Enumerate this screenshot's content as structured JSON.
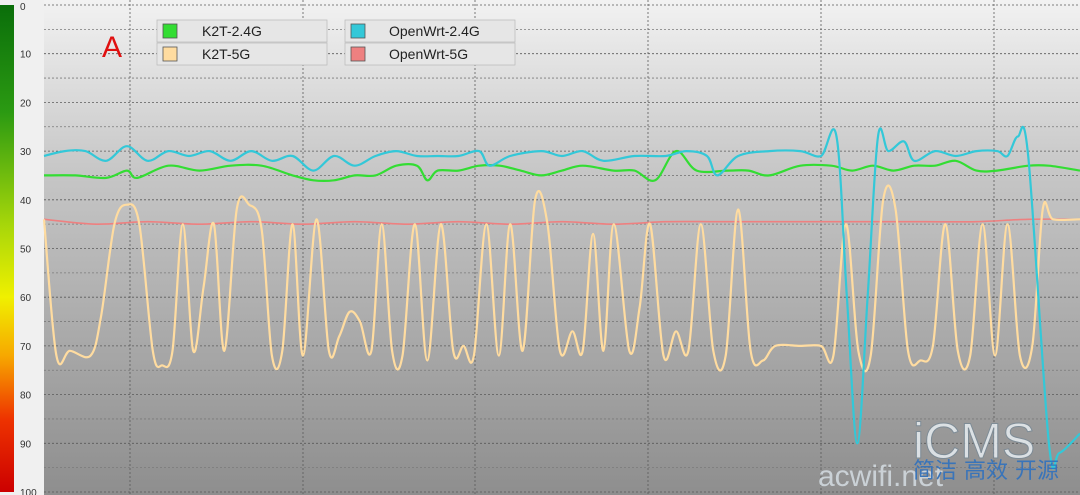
{
  "chart_data": {
    "type": "line",
    "panel_label": "A",
    "y_reversed": true,
    "ylim": [
      0,
      100
    ],
    "yticks": [
      0,
      10,
      20,
      30,
      40,
      50,
      60,
      70,
      80,
      90,
      100
    ],
    "grid": true,
    "legend_position": "top-left",
    "series": [
      {
        "name": "K2T-2.4G",
        "color": "#33dd33",
        "points": [
          [
            0,
            35
          ],
          [
            3,
            35
          ],
          [
            6,
            35.5
          ],
          [
            8,
            34
          ],
          [
            9,
            35.5
          ],
          [
            12,
            33
          ],
          [
            15,
            34
          ],
          [
            18,
            33
          ],
          [
            21,
            33
          ],
          [
            24,
            35
          ],
          [
            26,
            36
          ],
          [
            28,
            36
          ],
          [
            30,
            35
          ],
          [
            32,
            35
          ],
          [
            34,
            33
          ],
          [
            36,
            33
          ],
          [
            37,
            36
          ],
          [
            38,
            34
          ],
          [
            40,
            34
          ],
          [
            42,
            33
          ],
          [
            44,
            33
          ],
          [
            46,
            34
          ],
          [
            48,
            35
          ],
          [
            50,
            34
          ],
          [
            52,
            33
          ],
          [
            55,
            34
          ],
          [
            57,
            34
          ],
          [
            59,
            36
          ],
          [
            61,
            30
          ],
          [
            63,
            34
          ],
          [
            66,
            34
          ],
          [
            68,
            34
          ],
          [
            70,
            35
          ],
          [
            73,
            33
          ],
          [
            76,
            33
          ],
          [
            78,
            34
          ],
          [
            80,
            33
          ],
          [
            82,
            34
          ],
          [
            84,
            33
          ],
          [
            86,
            33
          ],
          [
            88,
            32
          ],
          [
            90,
            34
          ],
          [
            92,
            34
          ],
          [
            95,
            33
          ],
          [
            97,
            33
          ],
          [
            100,
            34
          ]
        ]
      },
      {
        "name": "OpenWrt-2.4G",
        "color": "#33c8d8",
        "points": [
          [
            0,
            31
          ],
          [
            2,
            30
          ],
          [
            4,
            30
          ],
          [
            6,
            32
          ],
          [
            8,
            29
          ],
          [
            10,
            32
          ],
          [
            12,
            30
          ],
          [
            14,
            31
          ],
          [
            16,
            30
          ],
          [
            18,
            32
          ],
          [
            20,
            30
          ],
          [
            22,
            32
          ],
          [
            24,
            31
          ],
          [
            26,
            34
          ],
          [
            28,
            31
          ],
          [
            30,
            33
          ],
          [
            32,
            31
          ],
          [
            34,
            30
          ],
          [
            36,
            31
          ],
          [
            38,
            31
          ],
          [
            40,
            31
          ],
          [
            42,
            30
          ],
          [
            43,
            33
          ],
          [
            45,
            31
          ],
          [
            48,
            30
          ],
          [
            50,
            31
          ],
          [
            52,
            30
          ],
          [
            54,
            32
          ],
          [
            57,
            31
          ],
          [
            60,
            31
          ],
          [
            62,
            30
          ],
          [
            64,
            31
          ],
          [
            65,
            35
          ],
          [
            67,
            31
          ],
          [
            70,
            30
          ],
          [
            73,
            30
          ],
          [
            75,
            31
          ],
          [
            76.5,
            27
          ],
          [
            77.5,
            60
          ],
          [
            78.5,
            90
          ],
          [
            79.5,
            60
          ],
          [
            80.5,
            27
          ],
          [
            81.5,
            30
          ],
          [
            83,
            28
          ],
          [
            84,
            32
          ],
          [
            86,
            30
          ],
          [
            88,
            31
          ],
          [
            90,
            30
          ],
          [
            92,
            30
          ],
          [
            93,
            31
          ],
          [
            94,
            27
          ],
          [
            95,
            31
          ],
          [
            97,
            90
          ],
          [
            98,
            92
          ],
          [
            100,
            88
          ]
        ]
      },
      {
        "name": "K2T-5G",
        "color": "#ffdca0",
        "points": [
          [
            0,
            44
          ],
          [
            1.2,
            72
          ],
          [
            2.5,
            71
          ],
          [
            4.5,
            72
          ],
          [
            5.5,
            64
          ],
          [
            6.8,
            45
          ],
          [
            8,
            41
          ],
          [
            9.2,
            45
          ],
          [
            10.5,
            71
          ],
          [
            11.4,
            74
          ],
          [
            12.4,
            71
          ],
          [
            13.4,
            45
          ],
          [
            14.4,
            71
          ],
          [
            15.4,
            58
          ],
          [
            16.4,
            45
          ],
          [
            17.4,
            71
          ],
          [
            18.6,
            42
          ],
          [
            19.8,
            41
          ],
          [
            21,
            46
          ],
          [
            22,
            72
          ],
          [
            23,
            71
          ],
          [
            24,
            45
          ],
          [
            25,
            72
          ],
          [
            26.3,
            44
          ],
          [
            27.5,
            71
          ],
          [
            28.5,
            68
          ],
          [
            29.5,
            63
          ],
          [
            30.5,
            65
          ],
          [
            31.6,
            71
          ],
          [
            32.6,
            45
          ],
          [
            33.6,
            71
          ],
          [
            34.6,
            72
          ],
          [
            35.8,
            45
          ],
          [
            37,
            73
          ],
          [
            38.3,
            45
          ],
          [
            39.5,
            71
          ],
          [
            40.5,
            70
          ],
          [
            41.5,
            72
          ],
          [
            42.7,
            45
          ],
          [
            43.9,
            72
          ],
          [
            45,
            45
          ],
          [
            46.2,
            71
          ],
          [
            47.4,
            40
          ],
          [
            48.6,
            45
          ],
          [
            49.8,
            71
          ],
          [
            51,
            67
          ],
          [
            52,
            71
          ],
          [
            53,
            47
          ],
          [
            54,
            71
          ],
          [
            55,
            45
          ],
          [
            56.5,
            71
          ],
          [
            57.5,
            62
          ],
          [
            58.5,
            45
          ],
          [
            59.8,
            72
          ],
          [
            61,
            67
          ],
          [
            62.2,
            71
          ],
          [
            63.4,
            45
          ],
          [
            64.6,
            71
          ],
          [
            65.8,
            72
          ],
          [
            67,
            42
          ],
          [
            68.2,
            71
          ],
          [
            69.4,
            73
          ],
          [
            70.6,
            70
          ],
          [
            73,
            70
          ],
          [
            75,
            70
          ],
          [
            76.2,
            72
          ],
          [
            77.4,
            45
          ],
          [
            78.6,
            71
          ],
          [
            79.8,
            72
          ],
          [
            81,
            40
          ],
          [
            82.2,
            42
          ],
          [
            83.4,
            71
          ],
          [
            84.6,
            73
          ],
          [
            85.8,
            70
          ],
          [
            87,
            45
          ],
          [
            88.2,
            71
          ],
          [
            89.4,
            72
          ],
          [
            90.6,
            45
          ],
          [
            91.8,
            72
          ],
          [
            93,
            45
          ],
          [
            94.2,
            72
          ],
          [
            95.4,
            70
          ],
          [
            96.4,
            42
          ],
          [
            97.4,
            44
          ],
          [
            100,
            44
          ]
        ]
      },
      {
        "name": "OpenWrt-5G",
        "color": "#ee8080",
        "points": [
          [
            0,
            44
          ],
          [
            5,
            45
          ],
          [
            10,
            44.5
          ],
          [
            15,
            45
          ],
          [
            20,
            44.5
          ],
          [
            25,
            45
          ],
          [
            30,
            44.5
          ],
          [
            35,
            45
          ],
          [
            40,
            44.5
          ],
          [
            45,
            45
          ],
          [
            50,
            44.5
          ],
          [
            55,
            45
          ],
          [
            60,
            44.5
          ],
          [
            65,
            44.5
          ],
          [
            70,
            44.5
          ],
          [
            75,
            44.5
          ],
          [
            80,
            44.5
          ],
          [
            85,
            44.5
          ],
          [
            90,
            44.5
          ],
          [
            95,
            44
          ],
          [
            100,
            44
          ]
        ]
      }
    ]
  },
  "watermark": {
    "brand": "iCMS",
    "site": "acwifi.net",
    "slogan": "简洁 高效 开源"
  }
}
